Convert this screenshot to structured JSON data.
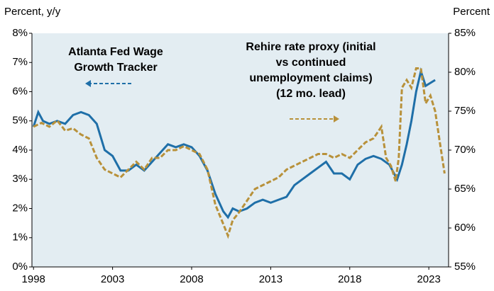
{
  "chart_data": {
    "type": "line",
    "y_label": "Percent, y/y",
    "y2_label": "Percent",
    "xlim": [
      1997.9,
      2024.25
    ],
    "xticks": [
      1998,
      2003,
      2008,
      2013,
      2018,
      2023
    ],
    "ylim": [
      0,
      8
    ],
    "yticks": [
      {
        "value": 0,
        "label": "0%"
      },
      {
        "value": 1,
        "label": "1%"
      },
      {
        "value": 2,
        "label": "2%"
      },
      {
        "value": 3,
        "label": "3%"
      },
      {
        "value": 4,
        "label": "4%"
      },
      {
        "value": 5,
        "label": "5%"
      },
      {
        "value": 6,
        "label": "6%"
      },
      {
        "value": 7,
        "label": "7%"
      },
      {
        "value": 8,
        "label": "8%"
      }
    ],
    "y2lim": [
      55,
      85
    ],
    "y2ticks": [
      {
        "value": 55,
        "label": "55%"
      },
      {
        "value": 60,
        "label": "60%"
      },
      {
        "value": 65,
        "label": "65%"
      },
      {
        "value": 70,
        "label": "70%"
      },
      {
        "value": 75,
        "label": "75%"
      },
      {
        "value": 80,
        "label": "80%"
      },
      {
        "value": 85,
        "label": "85%"
      }
    ],
    "background": "#e3edf2",
    "series": [
      {
        "name": [
          "Atlanta Fed Wage",
          "Growth Tracker"
        ],
        "color": "#1f6fa8",
        "line_style": "solid",
        "x": [
          1998,
          1998.3,
          1998.6,
          1999,
          1999.5,
          2000,
          2000.5,
          2001,
          2001.5,
          2002,
          2002.5,
          2003,
          2003.5,
          2004,
          2004.5,
          2005,
          2005.5,
          2006,
          2006.5,
          2007,
          2007.5,
          2008,
          2008.5,
          2009,
          2009.5,
          2010,
          2010.3,
          2010.6,
          2011,
          2011.5,
          2012,
          2012.5,
          2013,
          2013.5,
          2014,
          2014.5,
          2015,
          2015.5,
          2016,
          2016.5,
          2017,
          2017.5,
          2018,
          2018.5,
          2019,
          2019.5,
          2020,
          2020.5,
          2021,
          2021.3,
          2021.6,
          2021.9,
          2022.2,
          2022.5,
          2022.8,
          2023.1,
          2023.4
        ],
        "values": [
          4.8,
          5.3,
          5.0,
          4.9,
          5.0,
          4.9,
          5.2,
          5.3,
          5.2,
          4.9,
          4.0,
          3.8,
          3.3,
          3.3,
          3.5,
          3.3,
          3.6,
          3.9,
          4.2,
          4.1,
          4.2,
          4.1,
          3.8,
          3.3,
          2.5,
          1.9,
          1.7,
          2.0,
          1.9,
          2.0,
          2.2,
          2.3,
          2.2,
          2.3,
          2.4,
          2.8,
          3.0,
          3.2,
          3.4,
          3.6,
          3.2,
          3.2,
          3.0,
          3.5,
          3.7,
          3.8,
          3.7,
          3.5,
          3.0,
          3.5,
          4.2,
          5.0,
          6.0,
          6.7,
          6.2,
          6.3,
          6.4
        ]
      },
      {
        "name": [
          "Rehire rate proxy (initial",
          "vs continued",
          "unemployment claims)",
          "(12 mo. lead)"
        ],
        "color": "#b8913a",
        "line_style": "dashed",
        "axis": "y2",
        "x": [
          1998,
          1998.5,
          1999,
          1999.5,
          2000,
          2000.5,
          2001,
          2001.5,
          2002,
          2002.5,
          2003,
          2003.5,
          2004,
          2004.5,
          2005,
          2005.5,
          2006,
          2006.5,
          2007,
          2007.5,
          2008,
          2008.5,
          2009,
          2009.5,
          2010,
          2010.3,
          2010.6,
          2011,
          2011.5,
          2012,
          2012.5,
          2013,
          2013.5,
          2014,
          2014.5,
          2015,
          2015.5,
          2016,
          2016.5,
          2017,
          2017.5,
          2018,
          2018.5,
          2019,
          2019.5,
          2020,
          2020.3,
          2020.6,
          2020.9,
          2021.1,
          2021.3,
          2021.6,
          2021.9,
          2022.2,
          2022.5,
          2022.8,
          2023.1,
          2023.4,
          2023.7,
          2024
        ],
        "values": [
          73,
          73.5,
          73,
          73.8,
          72.5,
          72.8,
          72,
          71.5,
          69,
          67.5,
          67,
          66.5,
          67.5,
          68.5,
          67.5,
          69,
          69,
          70,
          70,
          70.5,
          70,
          69.5,
          67.5,
          63,
          60.5,
          59,
          61,
          62,
          63.5,
          65,
          65.5,
          66,
          66.5,
          67.5,
          68,
          68.5,
          69,
          69.5,
          69.5,
          69,
          69.5,
          69,
          70,
          71,
          71.5,
          73,
          69,
          68,
          66,
          69,
          78,
          79,
          78,
          80.5,
          80.5,
          76,
          77,
          75,
          71,
          67
        ]
      }
    ]
  }
}
